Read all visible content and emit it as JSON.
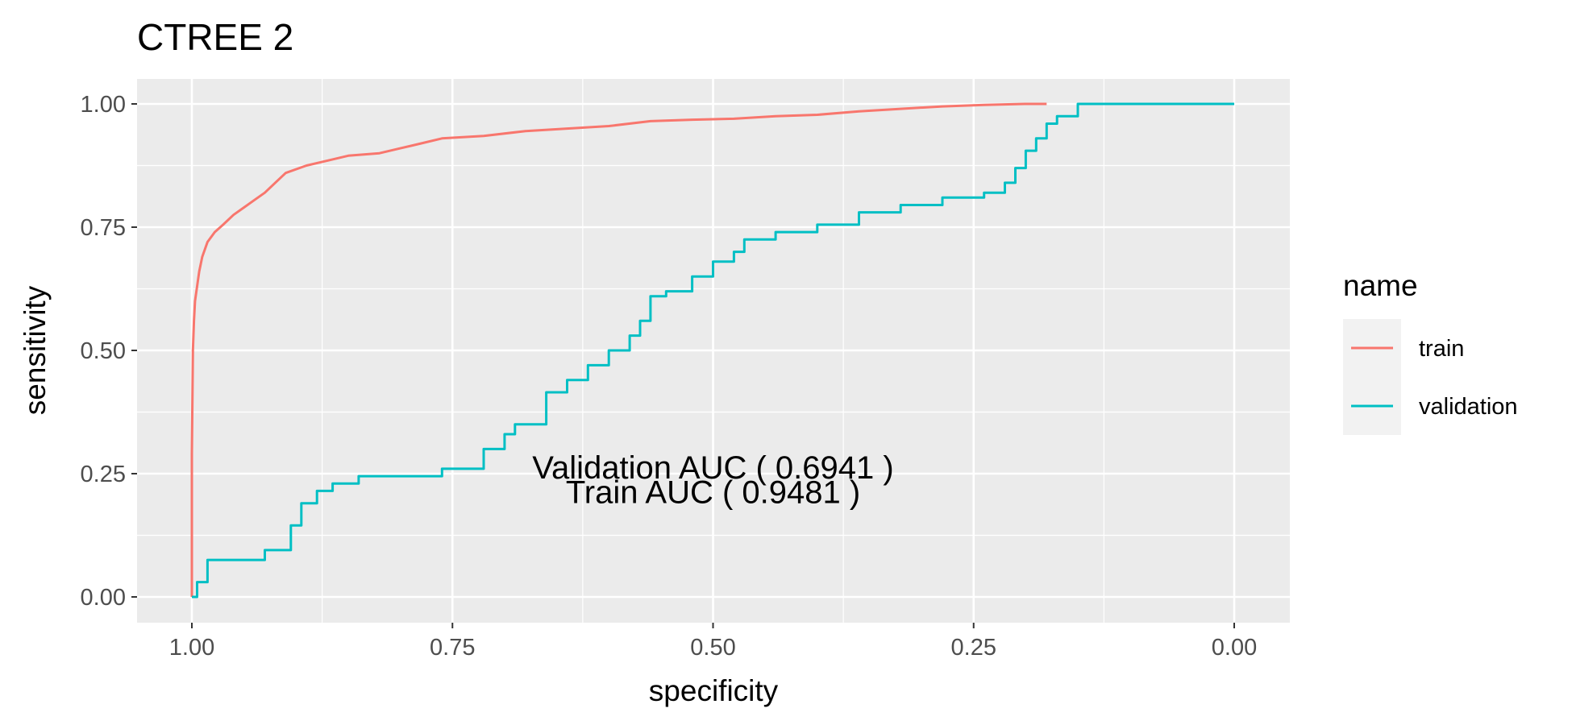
{
  "chart_data": {
    "type": "line",
    "title": "CTREE  2",
    "xlabel": "specificity",
    "ylabel": "sensitivity",
    "xlim": [
      1.0,
      0.0
    ],
    "x_reversed": true,
    "ylim": [
      0.0,
      1.0
    ],
    "x_ticks": [
      "1.00",
      "0.75",
      "0.50",
      "0.25",
      "0.00"
    ],
    "y_ticks": [
      "0.00",
      "0.25",
      "0.50",
      "0.75",
      "1.00"
    ],
    "grid": true,
    "legend": {
      "title": "name",
      "position": "right"
    },
    "series": [
      {
        "name": "train",
        "color": "#F8766D",
        "points": [
          [
            1.0,
            0.0
          ],
          [
            1.0,
            0.29
          ],
          [
            0.999,
            0.5
          ],
          [
            0.998,
            0.56
          ],
          [
            0.997,
            0.6
          ],
          [
            0.995,
            0.63
          ],
          [
            0.993,
            0.66
          ],
          [
            0.99,
            0.69
          ],
          [
            0.985,
            0.72
          ],
          [
            0.978,
            0.74
          ],
          [
            0.97,
            0.755
          ],
          [
            0.96,
            0.775
          ],
          [
            0.95,
            0.79
          ],
          [
            0.94,
            0.805
          ],
          [
            0.93,
            0.82
          ],
          [
            0.92,
            0.84
          ],
          [
            0.91,
            0.86
          ],
          [
            0.89,
            0.875
          ],
          [
            0.87,
            0.885
          ],
          [
            0.85,
            0.895
          ],
          [
            0.82,
            0.9
          ],
          [
            0.8,
            0.91
          ],
          [
            0.78,
            0.92
          ],
          [
            0.76,
            0.93
          ],
          [
            0.72,
            0.935
          ],
          [
            0.68,
            0.945
          ],
          [
            0.64,
            0.95
          ],
          [
            0.6,
            0.955
          ],
          [
            0.56,
            0.965
          ],
          [
            0.52,
            0.968
          ],
          [
            0.48,
            0.97
          ],
          [
            0.44,
            0.975
          ],
          [
            0.4,
            0.978
          ],
          [
            0.36,
            0.985
          ],
          [
            0.32,
            0.99
          ],
          [
            0.28,
            0.995
          ],
          [
            0.24,
            0.998
          ],
          [
            0.2,
            1.0
          ],
          [
            0.18,
            1.0
          ]
        ]
      },
      {
        "name": "validation",
        "color": "#00BFC4",
        "points": [
          [
            1.0,
            0.0
          ],
          [
            0.995,
            0.0
          ],
          [
            0.995,
            0.03
          ],
          [
            0.985,
            0.03
          ],
          [
            0.985,
            0.075
          ],
          [
            0.93,
            0.075
          ],
          [
            0.93,
            0.095
          ],
          [
            0.905,
            0.095
          ],
          [
            0.905,
            0.145
          ],
          [
            0.895,
            0.145
          ],
          [
            0.895,
            0.19
          ],
          [
            0.88,
            0.19
          ],
          [
            0.88,
            0.215
          ],
          [
            0.865,
            0.215
          ],
          [
            0.865,
            0.23
          ],
          [
            0.84,
            0.23
          ],
          [
            0.84,
            0.245
          ],
          [
            0.76,
            0.245
          ],
          [
            0.76,
            0.26
          ],
          [
            0.72,
            0.26
          ],
          [
            0.72,
            0.3
          ],
          [
            0.7,
            0.3
          ],
          [
            0.7,
            0.33
          ],
          [
            0.69,
            0.33
          ],
          [
            0.69,
            0.35
          ],
          [
            0.66,
            0.35
          ],
          [
            0.66,
            0.415
          ],
          [
            0.64,
            0.415
          ],
          [
            0.64,
            0.44
          ],
          [
            0.62,
            0.44
          ],
          [
            0.62,
            0.47
          ],
          [
            0.6,
            0.47
          ],
          [
            0.6,
            0.5
          ],
          [
            0.58,
            0.5
          ],
          [
            0.58,
            0.53
          ],
          [
            0.57,
            0.53
          ],
          [
            0.57,
            0.56
          ],
          [
            0.56,
            0.56
          ],
          [
            0.56,
            0.61
          ],
          [
            0.545,
            0.61
          ],
          [
            0.545,
            0.62
          ],
          [
            0.52,
            0.62
          ],
          [
            0.52,
            0.65
          ],
          [
            0.5,
            0.65
          ],
          [
            0.5,
            0.68
          ],
          [
            0.48,
            0.68
          ],
          [
            0.48,
            0.7
          ],
          [
            0.47,
            0.7
          ],
          [
            0.47,
            0.725
          ],
          [
            0.44,
            0.725
          ],
          [
            0.44,
            0.74
          ],
          [
            0.4,
            0.74
          ],
          [
            0.4,
            0.755
          ],
          [
            0.36,
            0.755
          ],
          [
            0.36,
            0.78
          ],
          [
            0.32,
            0.78
          ],
          [
            0.32,
            0.795
          ],
          [
            0.28,
            0.795
          ],
          [
            0.28,
            0.81
          ],
          [
            0.24,
            0.81
          ],
          [
            0.24,
            0.82
          ],
          [
            0.22,
            0.82
          ],
          [
            0.22,
            0.84
          ],
          [
            0.21,
            0.84
          ],
          [
            0.21,
            0.87
          ],
          [
            0.2,
            0.87
          ],
          [
            0.2,
            0.905
          ],
          [
            0.19,
            0.905
          ],
          [
            0.19,
            0.93
          ],
          [
            0.18,
            0.93
          ],
          [
            0.18,
            0.96
          ],
          [
            0.17,
            0.96
          ],
          [
            0.17,
            0.975
          ],
          [
            0.15,
            0.975
          ],
          [
            0.15,
            1.0
          ],
          [
            0.0,
            1.0
          ]
        ]
      }
    ],
    "annotations": [
      {
        "text": "Validation AUC ( 0.6941 )",
        "x": 0.5,
        "y": 0.24
      },
      {
        "text": "Train AUC ( 0.9481 )",
        "x": 0.5,
        "y": 0.19
      }
    ]
  }
}
